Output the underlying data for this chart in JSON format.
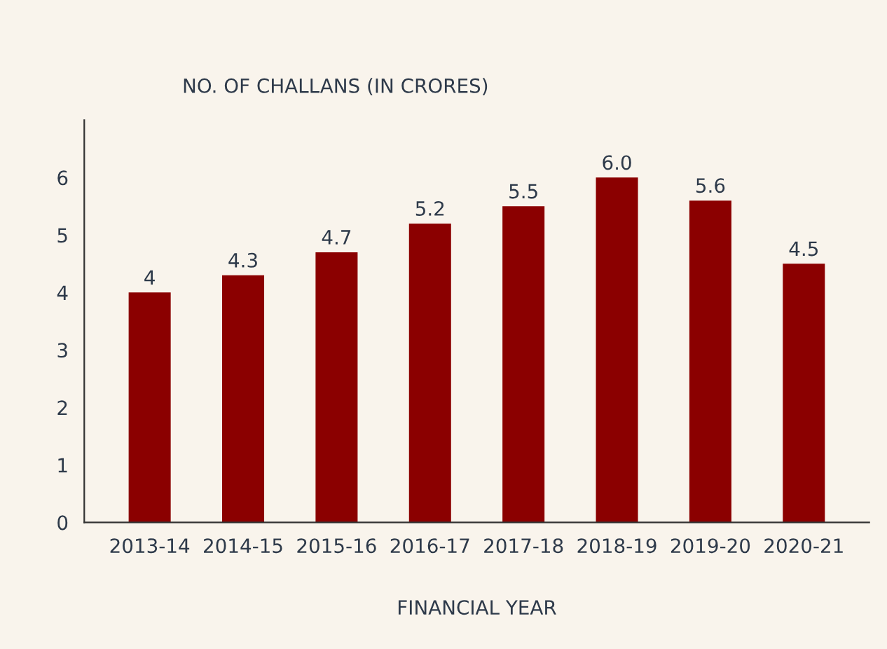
{
  "chart_data": {
    "type": "bar",
    "title": "NO. OF CHALLANS (IN CRORES)",
    "xlabel": "FINANCIAL YEAR",
    "categories": [
      "2013-14",
      "2014-15",
      "2015-16",
      "2016-17",
      "2017-18",
      "2018-19",
      "2019-20",
      "2020-21"
    ],
    "values": [
      4,
      4.3,
      4.7,
      5.2,
      5.5,
      6.0,
      5.6,
      4.5
    ],
    "value_labels": [
      "4",
      "4.3",
      "4.7",
      "5.2",
      "5.5",
      "6.0",
      "5.6",
      "4.5"
    ],
    "color": "#8b0000",
    "ylim": [
      0,
      7
    ],
    "yticks": [
      0,
      1,
      2,
      3,
      4,
      5,
      6
    ],
    "grid": false
  }
}
